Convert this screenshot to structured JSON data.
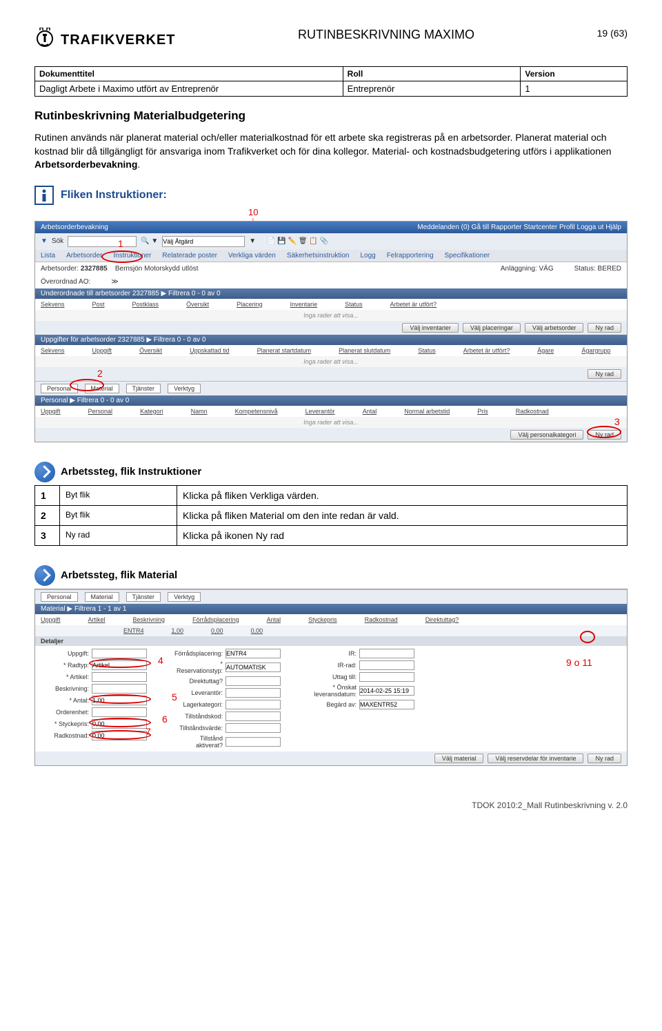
{
  "header": {
    "org": "TRAFIKVERKET",
    "title": "RUTINBESKRIVNING MAXIMO",
    "page": "19 (63)"
  },
  "doctable": {
    "h1": "Dokumenttitel",
    "h2": "Roll",
    "h3": "Version",
    "v1": "Dagligt Arbete i Maximo utfört av Entreprenör",
    "v2": "Entreprenör",
    "v3": "1"
  },
  "section_title": "Rutinbeskrivning Materialbudgetering",
  "body_p1": "Rutinen används när planerat material och/eller materialkostnad för ett arbete ska registreras på en arbetsorder. Planerat material och kostnad blir då tillgängligt för ansvariga inom Trafikverket och för dina kollegor. Material- och kostnadsbudgetering utförs i applikationen ",
  "body_bold": "Arbetsorderbevakning",
  "fliken_h": "Fliken Instruktioner:",
  "annot": {
    "a10": "10",
    "a1": "1",
    "a2": "2",
    "a3": "3",
    "a4": "4",
    "a5": "5",
    "a6": "6",
    "a7": "7",
    "a9": "9 o 11"
  },
  "ss1": {
    "app": "Arbetsorderbevakning",
    "nav": "Meddelanden (0)    Gå till   Rapporter   Startcenter   Profil   Logga ut   Hjälp",
    "search": "Sök",
    "action": "Välj Åtgärd",
    "tabs": [
      "Lista",
      "Arbetsorder",
      "Instruktioner",
      "Relaterade poster",
      "Verkliga värden",
      "Säkerhetsinstruktion",
      "Logg",
      "Felrapportering",
      "Specifikationer"
    ],
    "ao_label": "Arbetsorder:",
    "ao_val": "2327885",
    "ao_desc": "Bernsjön Motorskydd utlöst",
    "anl_label": "Anläggning:",
    "anl_val": "VÄG",
    "status_label": "Status:",
    "status_val": "BERED",
    "over_label": "Överordnad AO:",
    "sec1": "Underordnade till arbetsorder 2327885    ▶ Filtrera    0 - 0 av 0",
    "cols1": [
      "Sekvens",
      "Post",
      "Postklass",
      "Översikt",
      "Placering",
      "Inventarie",
      "Status",
      "Arbetet är utfört?"
    ],
    "empty": "Inga rader att visa...",
    "btns1": [
      "Välj inventarier",
      "Välj placeringar",
      "Välj arbetsorder",
      "Ny rad"
    ],
    "sec2": "Uppgifter för arbetsorder 2327885    ▶ Filtrera    0 - 0 av 0",
    "cols2": [
      "Sekvens",
      "Uppgift",
      "Översikt",
      "Uppskattad tid",
      "Planerat startdatum",
      "Planerat slutdatum",
      "Status",
      "Arbetet är utfört?",
      "Ägare",
      "Ägargrupp"
    ],
    "btns2": [
      "Ny rad"
    ],
    "subtabs": [
      "Personal",
      "Material",
      "Tjänster",
      "Verktyg"
    ],
    "sec3": "Personal    ▶ Filtrera    0 - 0 av 0",
    "cols3": [
      "Uppgift",
      "Personal",
      "Kategori",
      "Namn",
      "Kompetensnivå",
      "Leverantör",
      "Antal",
      "Normal arbetstid",
      "Pris",
      "Radkostnad"
    ],
    "btns3": [
      "Välj personalkategori",
      "Ny rad"
    ]
  },
  "steps1_h": "Arbetssteg, flik Instruktioner",
  "steps1": [
    {
      "n": "1",
      "a": "Byt flik",
      "d": "Klicka på fliken Verkliga värden."
    },
    {
      "n": "2",
      "a": "Byt flik",
      "d": "Klicka på fliken Material om den inte redan är vald."
    },
    {
      "n": "3",
      "a": "Ny rad",
      "d": "Klicka på ikonen Ny rad"
    }
  ],
  "steps2_h": "Arbetssteg, flik Material",
  "ss2": {
    "subtabs": [
      "Personal",
      "Material",
      "Tjänster",
      "Verktyg"
    ],
    "sec": "Material    ▶ Filtrera    1 - 1 av 1",
    "cols": [
      "Uppgift",
      "Artikel",
      "Beskrivning",
      "Förrådsplacering",
      "Antal",
      "Styckepris",
      "Radkostnad",
      "Direktuttag?"
    ],
    "row": [
      "",
      "",
      "",
      "ENTR4",
      "1,00",
      "0,00",
      "0,00",
      ""
    ],
    "detaljer": "Detaljer",
    "left": [
      {
        "l": "Uppgift:",
        "v": ""
      },
      {
        "l": "* Radtyp:",
        "v": "Artikel"
      },
      {
        "l": "* Artikel:",
        "v": ""
      },
      {
        "l": "Beskrivning:",
        "v": ""
      },
      {
        "l": "* Antal:",
        "v": "1,00"
      },
      {
        "l": "Orderenhet:",
        "v": ""
      },
      {
        "l": "* Styckepris:",
        "v": "0,00"
      },
      {
        "l": "Radkostnad:",
        "v": "0,00"
      }
    ],
    "mid": [
      {
        "l": "Förrådsplacering:",
        "v": "ENTR4"
      },
      {
        "l": "* Reservationstyp:",
        "v": "AUTOMATISK"
      },
      {
        "l": "Direktuttag?",
        "v": ""
      },
      {
        "l": "Leverantör:",
        "v": ""
      },
      {
        "l": "Lagerkategori:",
        "v": ""
      },
      {
        "l": "Tillståndskod:",
        "v": ""
      },
      {
        "l": "Tillståndsvärde:",
        "v": ""
      },
      {
        "l": "Tillstånd aktiverat?",
        "v": ""
      }
    ],
    "right": [
      {
        "l": "IR:",
        "v": ""
      },
      {
        "l": "IR-rad:",
        "v": ""
      },
      {
        "l": "Uttag till:",
        "v": ""
      },
      {
        "l": "* Önskat leveransdatum:",
        "v": "2014-02-25 15:19"
      },
      {
        "l": "Begärd av:",
        "v": "MAXENTR52"
      }
    ],
    "btns": [
      "Välj material",
      "Välj reservdelar för inventarie",
      "Ny rad"
    ]
  },
  "footer": "TDOK 2010:2_Mall Rutinbeskrivning v. 2.0"
}
